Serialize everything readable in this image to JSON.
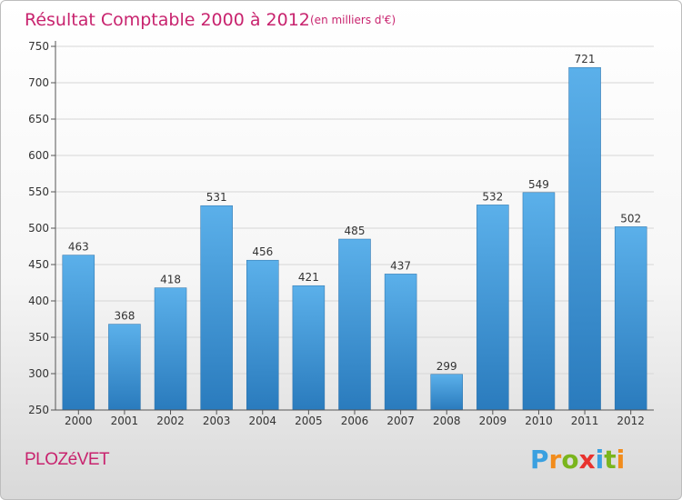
{
  "chart_data": {
    "type": "bar",
    "title": "Résultat Comptable 2000 à 2012",
    "subtitle": "(en milliers d'€)",
    "categories": [
      "2000",
      "2001",
      "2002",
      "2003",
      "2004",
      "2005",
      "2006",
      "2007",
      "2008",
      "2009",
      "2010",
      "2011",
      "2012"
    ],
    "values": [
      463,
      368,
      418,
      531,
      456,
      421,
      485,
      437,
      299,
      532,
      549,
      721,
      502
    ],
    "ylim": [
      250,
      750
    ],
    "yticks": [
      250,
      300,
      350,
      400,
      450,
      500,
      550,
      600,
      650,
      700,
      750
    ],
    "grid": true,
    "xlabel": "",
    "ylabel": "",
    "bar_color_top": "#5bb0ea",
    "bar_color_bottom": "#2a7bbd"
  },
  "footer": {
    "city": "PLOZéVET",
    "brand": "Proxiti",
    "brand_letters": [
      "P",
      "r",
      "o",
      "x",
      "i",
      "t",
      "i"
    ],
    "brand_colors": [
      "#3aa0e0",
      "#f28c1c",
      "#7ab51d",
      "#e8322e",
      "#3aa0e0",
      "#7ab51d",
      "#f28c1c"
    ]
  }
}
